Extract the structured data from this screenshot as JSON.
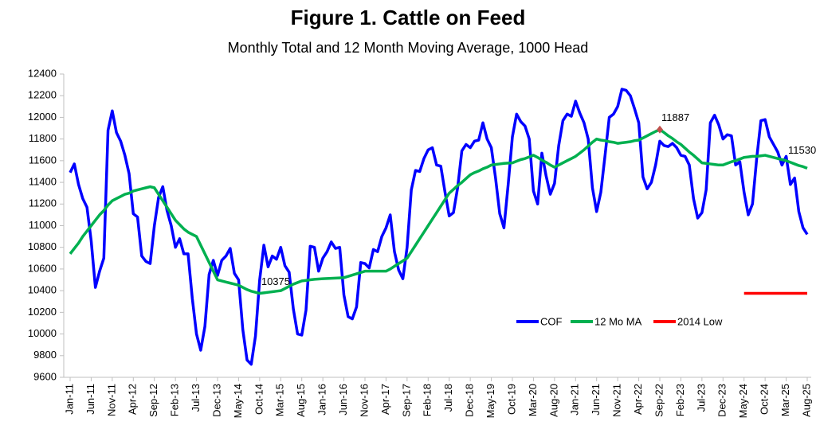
{
  "chart_data": {
    "type": "line",
    "title": "Figure 1. Cattle on Feed",
    "subtitle": "Monthly Total and 12 Month Moving Average, 1000 Head",
    "categories": [
      "Jan-11",
      null,
      null,
      null,
      null,
      "Jun-11",
      null,
      null,
      null,
      null,
      "Nov-11",
      null,
      null,
      null,
      null,
      "Apr-12",
      null,
      null,
      null,
      null,
      "Sep-12",
      null,
      null,
      null,
      null,
      "Feb-13",
      null,
      null,
      null,
      null,
      "Jul-13",
      null,
      null,
      null,
      null,
      "Dec-13",
      null,
      null,
      null,
      null,
      "May-14",
      null,
      null,
      null,
      null,
      "Oct-14",
      null,
      null,
      null,
      null,
      "Mar-15",
      null,
      null,
      null,
      null,
      "Aug-15",
      null,
      null,
      null,
      null,
      "Jan-16",
      null,
      null,
      null,
      null,
      "Jun-16",
      null,
      null,
      null,
      null,
      "Nov-16",
      null,
      null,
      null,
      null,
      "Apr-17",
      null,
      null,
      null,
      null,
      "Sep-17",
      null,
      null,
      null,
      null,
      "Feb-18",
      null,
      null,
      null,
      null,
      "Jul-18",
      null,
      null,
      null,
      null,
      "Dec-18",
      null,
      null,
      null,
      null,
      "May-19",
      null,
      null,
      null,
      null,
      "Oct-19",
      null,
      null,
      null,
      null,
      "Mar-20",
      null,
      null,
      null,
      null,
      "Aug-20",
      null,
      null,
      null,
      null,
      "Jan-21",
      null,
      null,
      null,
      null,
      "Jun-21",
      null,
      null,
      null,
      null,
      "Nov-21",
      null,
      null,
      null,
      null,
      "Apr-22",
      null,
      null,
      null,
      null,
      "Sep-22",
      null,
      null,
      null,
      null,
      "Feb-23",
      null,
      null,
      null,
      null,
      "Jul-23",
      null,
      null,
      null,
      null,
      "Dec-23",
      null,
      null,
      null,
      null,
      "May-24",
      null,
      null,
      null,
      null,
      "Oct-24",
      null,
      null,
      null,
      null,
      "Mar-25",
      null,
      null,
      null,
      null,
      "Aug-25"
    ],
    "series": [
      {
        "name": "COF",
        "color": "#0000ff",
        "values": [
          11490,
          11570,
          11380,
          11250,
          11170,
          10860,
          10430,
          10580,
          10700,
          11880,
          12060,
          11860,
          11780,
          11650,
          11480,
          11110,
          11080,
          10720,
          10670,
          10650,
          11000,
          11260,
          11360,
          11140,
          11000,
          10800,
          10880,
          10740,
          10740,
          10330,
          10000,
          9850,
          10070,
          10550,
          10680,
          10540,
          10680,
          10720,
          10790,
          10560,
          10500,
          10040,
          9760,
          9720,
          9980,
          10500,
          10820,
          10620,
          10720,
          10690,
          10800,
          10630,
          10570,
          10230,
          10000,
          9990,
          10220,
          10810,
          10800,
          10580,
          10700,
          10760,
          10850,
          10790,
          10800,
          10360,
          10160,
          10140,
          10250,
          10660,
          10650,
          10610,
          10780,
          10760,
          10900,
          10980,
          11100,
          10760,
          10590,
          10510,
          10800,
          11330,
          11510,
          11500,
          11620,
          11700,
          11720,
          11560,
          11550,
          11310,
          11090,
          11120,
          11350,
          11690,
          11750,
          11720,
          11780,
          11790,
          11950,
          11800,
          11720,
          11440,
          11110,
          10980,
          11380,
          11820,
          12030,
          11960,
          11920,
          11800,
          11320,
          11200,
          11670,
          11460,
          11290,
          11390,
          11740,
          11970,
          12030,
          12010,
          12150,
          12040,
          11950,
          11800,
          11350,
          11130,
          11310,
          11650,
          12000,
          12030,
          12100,
          12260,
          12250,
          12200,
          12080,
          11950,
          11450,
          11340,
          11400,
          11560,
          11780,
          11740,
          11730,
          11760,
          11720,
          11650,
          11640,
          11560,
          11250,
          11070,
          11120,
          11330,
          11950,
          12020,
          11930,
          11800,
          11840,
          11830,
          11560,
          11590,
          11310,
          11100,
          11200,
          11620,
          11970,
          11980,
          11820,
          11750,
          11680,
          11560,
          11640,
          11380,
          11440,
          11130,
          10980,
          10920
        ]
      },
      {
        "name": "12 Mo MA",
        "color": "#00b050",
        "values": [
          10740,
          10790,
          10840,
          10900,
          10950,
          11000,
          11050,
          11100,
          11140,
          11190,
          11230,
          11250,
          11270,
          11290,
          11300,
          11320,
          11330,
          11340,
          11350,
          11360,
          11350,
          11290,
          11230,
          11170,
          11110,
          11050,
          11010,
          10970,
          10940,
          10920,
          10900,
          10820,
          10740,
          10660,
          10580,
          10500,
          10490,
          10480,
          10470,
          10460,
          10450,
          10430,
          10410,
          10395,
          10385,
          10375,
          10380,
          10385,
          10390,
          10395,
          10400,
          10420,
          10440,
          10460,
          10475,
          10490,
          10495,
          10500,
          10505,
          10508,
          10510,
          10512,
          10514,
          10516,
          10518,
          10520,
          10532,
          10544,
          10556,
          10568,
          10580,
          10580,
          10580,
          10580,
          10580,
          10580,
          10600,
          10625,
          10650,
          10675,
          10700,
          10760,
          10820,
          10880,
          10940,
          11000,
          11060,
          11120,
          11180,
          11240,
          11300,
          11335,
          11370,
          11400,
          11435,
          11470,
          11490,
          11505,
          11525,
          11540,
          11560,
          11565,
          11570,
          11575,
          11578,
          11580,
          11595,
          11610,
          11620,
          11635,
          11650,
          11630,
          11605,
          11585,
          11560,
          11540,
          11560,
          11580,
          11600,
          11620,
          11640,
          11670,
          11700,
          11735,
          11770,
          11800,
          11790,
          11785,
          11775,
          11770,
          11760,
          11765,
          11770,
          11775,
          11785,
          11790,
          11810,
          11830,
          11850,
          11870,
          11887,
          11860,
          11830,
          11805,
          11775,
          11750,
          11715,
          11680,
          11650,
          11615,
          11580,
          11575,
          11570,
          11565,
          11560,
          11560,
          11575,
          11590,
          11600,
          11615,
          11630,
          11635,
          11640,
          11640,
          11645,
          11650,
          11640,
          11630,
          11620,
          11610,
          11600,
          11585,
          11570,
          11555,
          11545,
          11530
        ]
      },
      {
        "name": "2014 Low",
        "color": "#ff0000",
        "values": [
          null,
          null,
          null,
          null,
          null,
          null,
          null,
          null,
          null,
          null,
          null,
          null,
          null,
          null,
          null,
          null,
          null,
          null,
          null,
          null,
          null,
          null,
          null,
          null,
          null,
          null,
          null,
          null,
          null,
          null,
          null,
          null,
          null,
          null,
          null,
          null,
          null,
          null,
          null,
          null,
          null,
          null,
          null,
          null,
          null,
          null,
          null,
          null,
          null,
          null,
          null,
          null,
          null,
          null,
          null,
          null,
          null,
          null,
          null,
          null,
          null,
          null,
          null,
          null,
          null,
          null,
          null,
          null,
          null,
          null,
          null,
          null,
          null,
          null,
          null,
          null,
          null,
          null,
          null,
          null,
          null,
          null,
          null,
          null,
          null,
          null,
          null,
          null,
          null,
          null,
          null,
          null,
          null,
          null,
          null,
          null,
          null,
          null,
          null,
          null,
          null,
          null,
          null,
          null,
          null,
          null,
          null,
          null,
          null,
          null,
          null,
          null,
          null,
          null,
          null,
          null,
          null,
          null,
          null,
          null,
          null,
          null,
          null,
          null,
          null,
          null,
          null,
          null,
          null,
          null,
          null,
          null,
          null,
          null,
          null,
          null,
          null,
          null,
          null,
          null,
          null,
          null,
          null,
          null,
          null,
          null,
          null,
          null,
          null,
          null,
          null,
          null,
          null,
          null,
          null,
          null,
          null,
          null,
          null,
          null,
          10375,
          10375,
          10375,
          10375,
          10375,
          10375,
          10375,
          10375,
          10375,
          10375,
          10375,
          10375,
          10375,
          10375,
          10375,
          10375
        ]
      }
    ],
    "annotations": [
      {
        "category": "Sep-22",
        "value": 11887,
        "marker": "#c0504d"
      },
      {
        "category": "Oct-14",
        "value": 10375
      },
      {
        "category": "Aug-25",
        "value": 11530
      }
    ],
    "annotation_color": "#00b050",
    "ylim": [
      9600,
      12400
    ],
    "yticks": [
      9600,
      9800,
      10000,
      10200,
      10400,
      10600,
      10800,
      11000,
      11200,
      11400,
      11600,
      11800,
      12000,
      12200,
      12400
    ],
    "grid": false
  }
}
